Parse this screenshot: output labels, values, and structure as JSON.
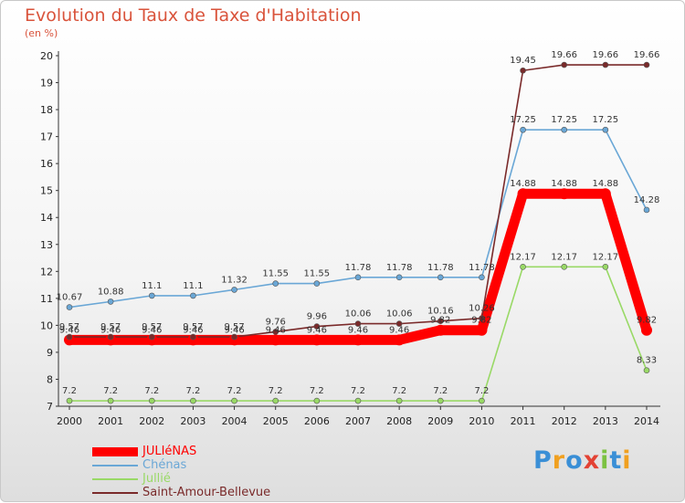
{
  "chart_data": {
    "type": "line",
    "title": "Evolution du Taux de Taxe d'Habitation",
    "subtitle": "(en %)",
    "x": [
      "2000",
      "2001",
      "2002",
      "2003",
      "2004",
      "2005",
      "2006",
      "2007",
      "2008",
      "2009",
      "2010",
      "2011",
      "2012",
      "2013",
      "2014"
    ],
    "ylim": [
      7,
      20
    ],
    "yticks": [
      7,
      8,
      9,
      10,
      11,
      12,
      13,
      14,
      15,
      16,
      17,
      18,
      19,
      20
    ],
    "grid": false,
    "legend_position": "bottom-left",
    "series": [
      {
        "name": "JULIéNAS",
        "color": "#ff0000",
        "values": [
          9.46,
          9.46,
          9.46,
          9.46,
          9.46,
          9.46,
          9.46,
          9.46,
          9.46,
          9.82,
          9.82,
          14.88,
          14.88,
          14.88,
          9.82
        ],
        "labels": [
          "9.46",
          "9.46",
          "9.46",
          "9.46",
          "9.46",
          "9.46",
          "9.46",
          "9.46",
          "9.46",
          "9.82",
          "9.82",
          "14.88",
          "14.88",
          "14.88",
          "9.82"
        ]
      },
      {
        "name": "Chénas",
        "color": "#6aa7d6",
        "values": [
          10.67,
          10.88,
          11.1,
          11.1,
          11.32,
          11.55,
          11.55,
          11.78,
          11.78,
          11.78,
          11.78,
          17.25,
          17.25,
          17.25,
          14.28
        ],
        "labels": [
          "10.67",
          "10.88",
          "11.1",
          "11.1",
          "11.32",
          "11.55",
          "11.55",
          "11.78",
          "11.78",
          "11.78",
          "11.78",
          "17.25",
          "17.25",
          "17.25",
          "14.28"
        ]
      },
      {
        "name": "Jullié",
        "color": "#99d966",
        "values": [
          7.2,
          7.2,
          7.2,
          7.2,
          7.2,
          7.2,
          7.2,
          7.2,
          7.2,
          7.2,
          7.2,
          12.17,
          12.17,
          12.17,
          8.33
        ],
        "labels": [
          "7.2",
          "7.2",
          "7.2",
          "7.2",
          "7.2",
          "7.2",
          "7.2",
          "7.2",
          "7.2",
          "7.2",
          "7.2",
          "12.17",
          "12.17",
          "12.17",
          "8.33"
        ]
      },
      {
        "name": "Saint-Amour-Bellevue",
        "color": "#7a2a2a",
        "values": [
          9.57,
          9.57,
          9.57,
          9.57,
          9.57,
          9.76,
          9.96,
          10.06,
          10.06,
          10.16,
          10.26,
          19.45,
          19.66,
          19.66,
          19.66
        ],
        "labels": [
          "9.57",
          "9.57",
          "9.57",
          "9.57",
          "9.57",
          "9.76",
          "9.96",
          "10.06",
          "10.06",
          "10.16",
          "10.26",
          "19.45",
          "19.66",
          "19.66",
          "19.66"
        ]
      }
    ]
  },
  "logo": {
    "text": "Proxiti",
    "letters": [
      "P",
      "r",
      "o",
      "x",
      "i",
      "t",
      "i"
    ],
    "colors": [
      "#3a8fd6",
      "#f0a020",
      "#3a8fd6",
      "#e34234",
      "#7cc242",
      "#3a8fd6",
      "#f0a020"
    ]
  }
}
